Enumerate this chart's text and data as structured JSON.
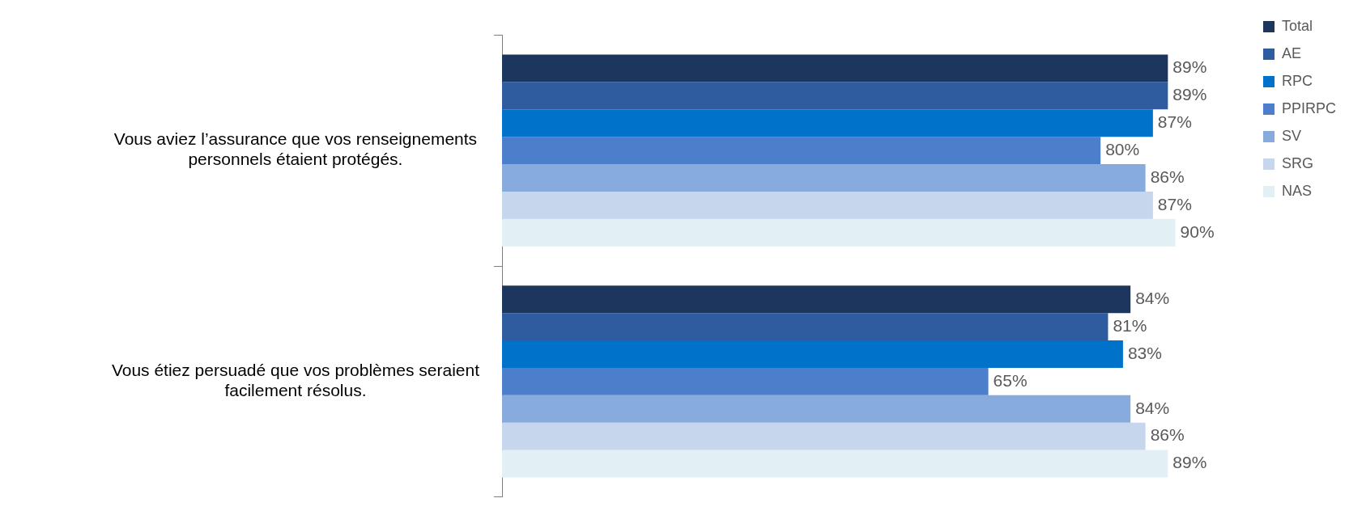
{
  "chart_data": {
    "type": "bar",
    "orientation": "horizontal",
    "categories": [
      "Vous aviez l’assurance que vos renseignements personnels étaient protégés.",
      "Vous étiez persuadé que vos problèmes seraient facilement résolus."
    ],
    "tick_labels": "y",
    "legend": "top right",
    "series": [
      {
        "name": "Total",
        "color": "#1d365e",
        "values": [
          89,
          84
        ],
        "value_labels": [
          "89%",
          "84%"
        ]
      },
      {
        "name": "AE",
        "color": "#2e5c9f",
        "values": [
          89,
          81
        ],
        "value_labels": [
          "89%",
          "81%"
        ]
      },
      {
        "name": "RPC",
        "color": "#0172c9",
        "values": [
          87,
          83
        ],
        "value_labels": [
          "87%",
          "83%"
        ]
      },
      {
        "name": "PPIRPC",
        "color": "#4b7fcb",
        "values": [
          80,
          65
        ],
        "value_labels": [
          "80%",
          "65%"
        ]
      },
      {
        "name": "SV",
        "color": "#87abdd",
        "values": [
          86,
          84
        ],
        "value_labels": [
          "86%",
          "84%"
        ]
      },
      {
        "name": "SRG",
        "color": "#c5d6ed",
        "values": [
          87,
          86
        ],
        "value_labels": [
          "87%",
          "86%"
        ]
      },
      {
        "name": "NAS",
        "color": "#e2eff5",
        "values": [
          90,
          89
        ],
        "value_labels": [
          "90%",
          "89%"
        ]
      }
    ]
  }
}
